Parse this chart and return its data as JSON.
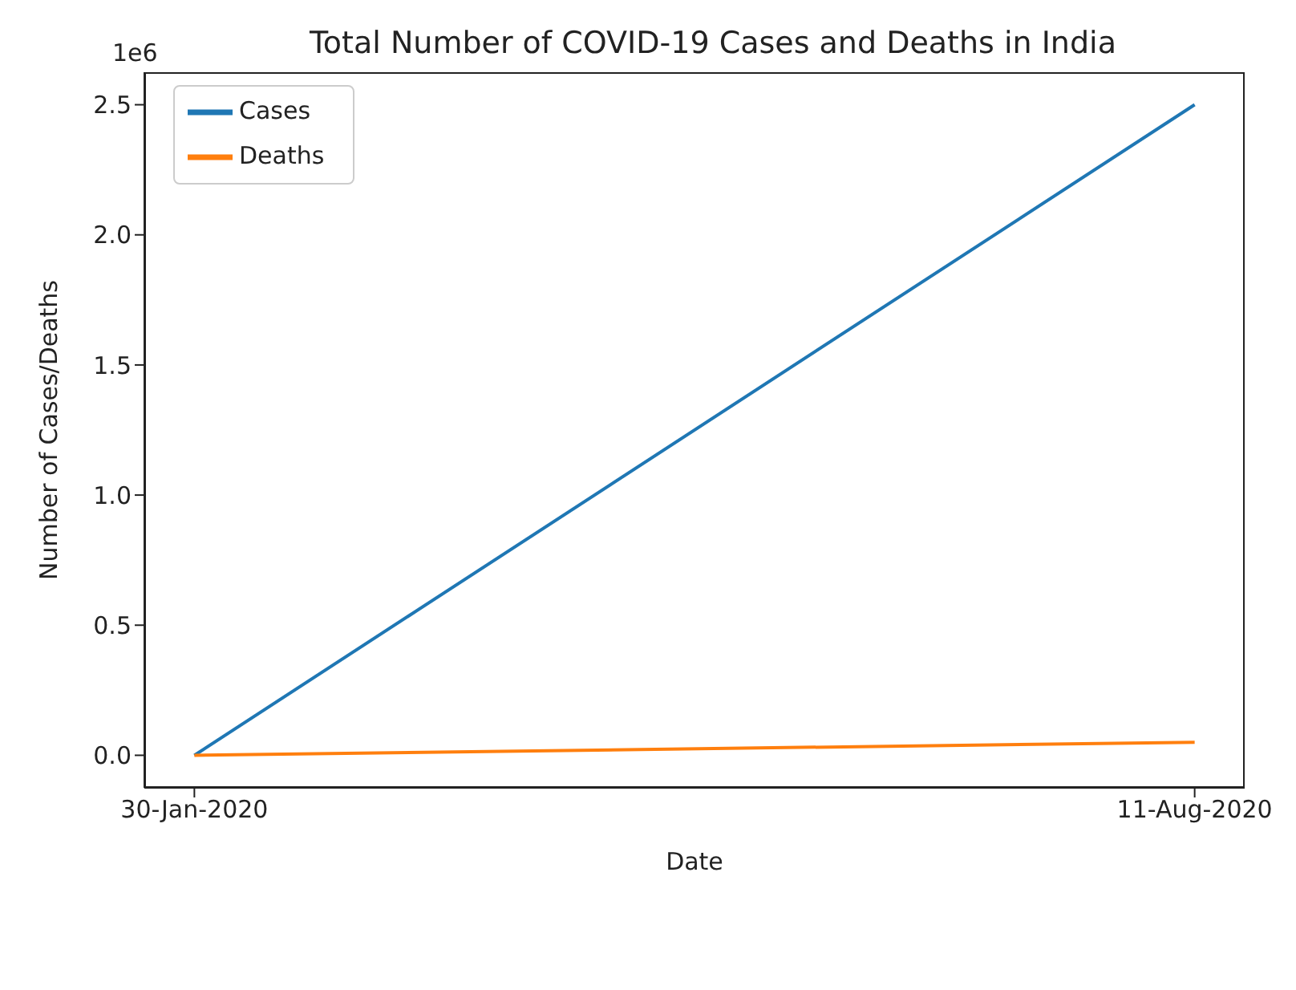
{
  "chart_data": {
    "type": "line",
    "title": "Total Number of COVID-19 Cases and Deaths in India",
    "xlabel": "Date",
    "ylabel": "Number of Cases/Deaths",
    "annotations": [
      "1e6"
    ],
    "categories": [
      "30-Jan-2020",
      "11-Aug-2020"
    ],
    "series": [
      {
        "name": "Cases",
        "color": "#1f77b4",
        "values": [
          0,
          2.5
        ]
      },
      {
        "name": "Deaths",
        "color": "#ff7f0e",
        "values": [
          0,
          0.05
        ]
      }
    ],
    "ylim": [
      -0.125,
      2.625
    ],
    "yticks": [
      {
        "value": 0,
        "label": "0.0"
      },
      {
        "value": 0.5,
        "label": "0.5"
      },
      {
        "value": 1,
        "label": "1.0"
      },
      {
        "value": 1.5,
        "label": "1.5"
      },
      {
        "value": 2,
        "label": "2.0"
      },
      {
        "value": 2.5,
        "label": "2.5"
      }
    ],
    "legend": "top left"
  }
}
